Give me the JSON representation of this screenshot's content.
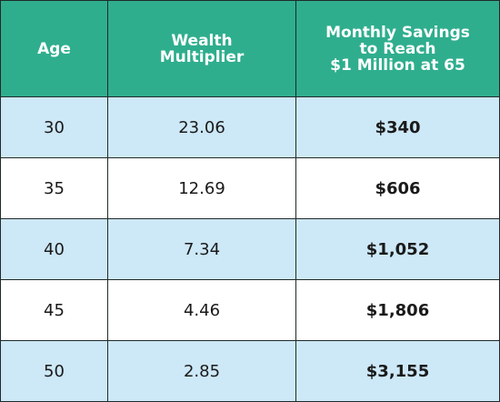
{
  "table": {
    "headers": {
      "age": [
        "Age"
      ],
      "multiplier": [
        "Wealth",
        "Multiplier"
      ],
      "savings": [
        "Monthly Savings",
        "to Reach",
        "$1 Million at 65"
      ]
    },
    "rows": [
      {
        "age": "30",
        "multiplier": "23.06",
        "savings": "$340"
      },
      {
        "age": "35",
        "multiplier": "12.69",
        "savings": "$606"
      },
      {
        "age": "40",
        "multiplier": "7.34",
        "savings": "$1,052"
      },
      {
        "age": "45",
        "multiplier": "4.46",
        "savings": "$1,806"
      },
      {
        "age": "50",
        "multiplier": "2.85",
        "savings": "$3,155"
      }
    ]
  },
  "colors": {
    "header_bg": "#2fae8e",
    "header_text": "#ffffff",
    "shaded_row": "#cde8f7",
    "plain_row": "#ffffff",
    "border": "#1f2a2a"
  }
}
